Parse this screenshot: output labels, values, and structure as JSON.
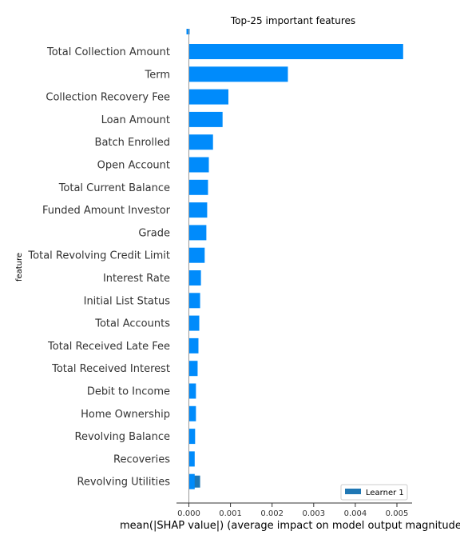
{
  "chart_data": {
    "type": "bar",
    "orientation": "horizontal",
    "title": "Top-25 important features",
    "xlabel": "mean(|SHAP value|) (average impact on model output magnitude)",
    "ylabel": "feature",
    "categories": [
      "Total Collection Amount",
      "Term",
      "Collection Recovery Fee",
      "Loan Amount",
      "Batch Enrolled",
      "Open Account",
      "Total Current Balance",
      "Funded Amount Investor",
      "Grade",
      "Total Revolving Credit Limit",
      "Interest Rate",
      "Initial List Status",
      "Total Accounts",
      "Total Received Late Fee",
      "Total Received Interest",
      "Debit to Income",
      "Home Ownership",
      "Revolving Balance",
      "Recoveries",
      "Revolving Utilities"
    ],
    "series": [
      {
        "name": "Learner 1",
        "color": "#008bfb",
        "values": [
          0.00515,
          0.00238,
          0.00095,
          0.00081,
          0.00058,
          0.00048,
          0.00046,
          0.00044,
          0.00042,
          0.00038,
          0.00029,
          0.00027,
          0.00025,
          0.00023,
          0.00021,
          0.00017,
          0.00017,
          0.00015,
          0.00014,
          0.00014
        ]
      }
    ],
    "extra_marks": [
      {
        "category_index": 19,
        "value": 0.00027,
        "color": "#1f77b4"
      }
    ],
    "xticks": [
      "0.000",
      "0.001",
      "0.002",
      "0.003",
      "0.004",
      "0.005"
    ],
    "xlim": [
      -0.0003,
      0.0054
    ],
    "legend": {
      "position": "bottom-right",
      "entries": [
        "Learner 1"
      ],
      "swatch_color": "#1f77b4"
    },
    "grid": false
  }
}
